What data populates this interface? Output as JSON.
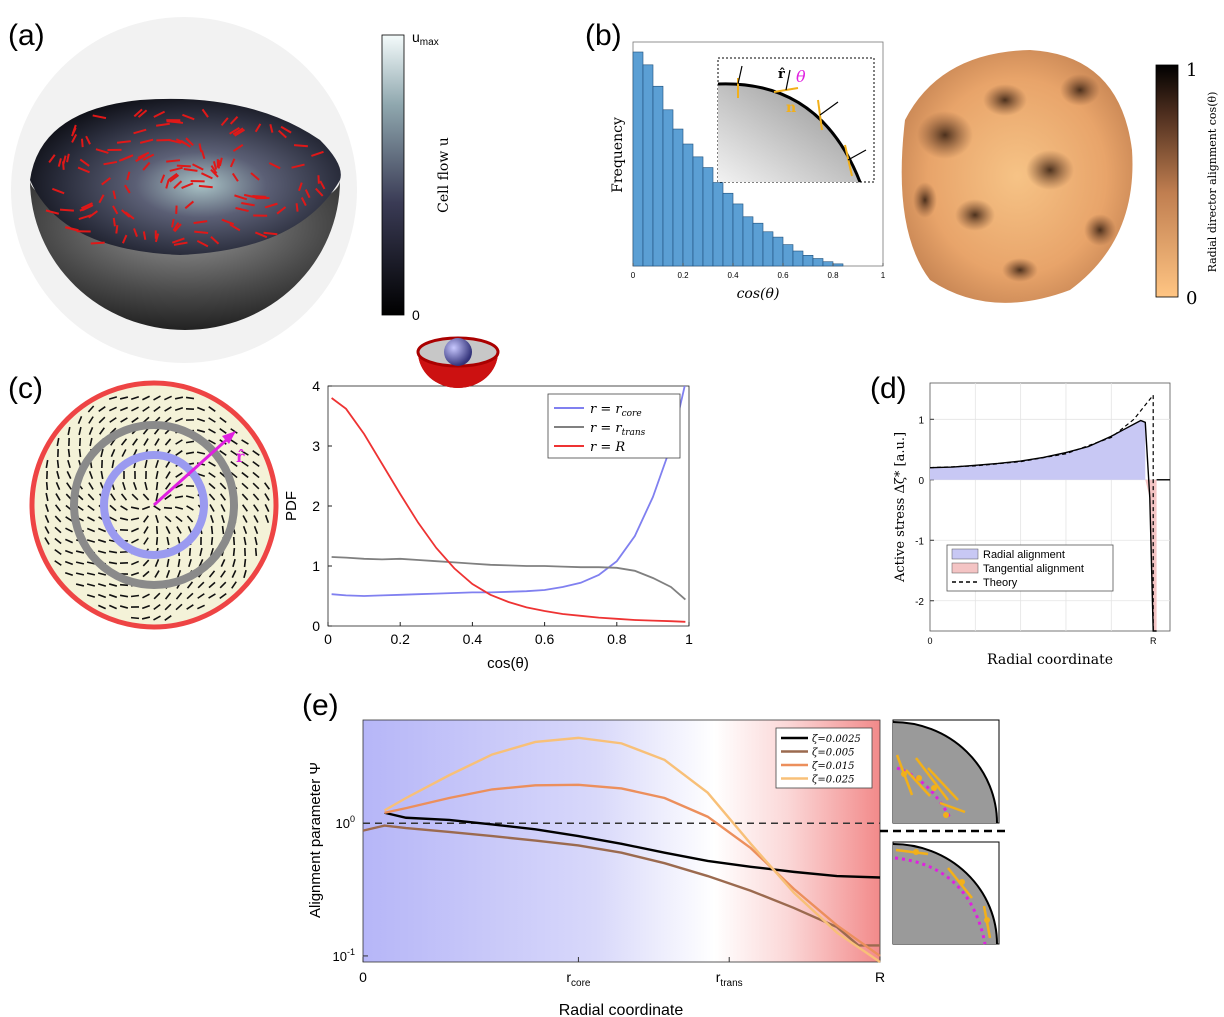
{
  "panels": {
    "a": {
      "letter": "(a)",
      "colorbar": {
        "label": "Cell flow u",
        "max": "u",
        "max_sub": "max",
        "min": "0"
      }
    },
    "b": {
      "letter": "(b)",
      "colorbar": {
        "label": "Radial director alignment cos(θ)",
        "max": "1",
        "min": "0"
      },
      "inset": {
        "r_hat": "r̂",
        "theta": "θ",
        "n": "n"
      }
    },
    "c": {
      "letter": "(c)",
      "r_hat": "r̂"
    },
    "d": {
      "letter": "(d)"
    },
    "e": {
      "letter": "(e)"
    }
  },
  "chart_data": [
    {
      "id": "b",
      "type": "bar",
      "xlabel": "cos(θ)",
      "ylabel": "Frequency",
      "xlim": [
        0,
        1
      ],
      "bin_width": 0.04,
      "x": [
        0.0,
        0.04,
        0.08,
        0.12,
        0.16,
        0.2,
        0.24,
        0.28,
        0.32,
        0.36,
        0.4,
        0.44,
        0.48,
        0.52,
        0.56,
        0.6,
        0.64,
        0.68,
        0.72,
        0.76,
        0.8
      ],
      "values": [
        1.0,
        0.94,
        0.84,
        0.73,
        0.64,
        0.57,
        0.51,
        0.46,
        0.39,
        0.34,
        0.29,
        0.23,
        0.2,
        0.16,
        0.135,
        0.1,
        0.07,
        0.05,
        0.035,
        0.02,
        0.01
      ],
      "xticks": [
        "0",
        "0.2",
        "0.4",
        "0.6",
        "0.8",
        "1"
      ],
      "color": "#5b9fd4"
    },
    {
      "id": "c",
      "type": "line",
      "xlabel": "cos(θ)",
      "ylabel": "PDF",
      "xlim": [
        0,
        1
      ],
      "ylim": [
        0,
        4
      ],
      "xticks": [
        "0",
        "0.2",
        "0.4",
        "0.6",
        "0.8",
        "1"
      ],
      "yticks": [
        "0",
        "1",
        "2",
        "3",
        "4"
      ],
      "legend_position": "top-right",
      "series": [
        {
          "name": "r = r_core",
          "label_main": "r = r",
          "label_sub": "core",
          "color": "#8080f0",
          "x": [
            0.01,
            0.05,
            0.1,
            0.15,
            0.2,
            0.25,
            0.3,
            0.35,
            0.4,
            0.45,
            0.5,
            0.55,
            0.6,
            0.65,
            0.7,
            0.75,
            0.8,
            0.85,
            0.9,
            0.95,
            0.99
          ],
          "y": [
            0.53,
            0.51,
            0.5,
            0.51,
            0.52,
            0.53,
            0.54,
            0.55,
            0.56,
            0.56,
            0.57,
            0.58,
            0.6,
            0.65,
            0.72,
            0.85,
            1.08,
            1.5,
            2.15,
            3.0,
            4.05
          ]
        },
        {
          "name": "r = r_trans",
          "label_main": "r = r",
          "label_sub": "trans",
          "color": "#808080",
          "x": [
            0.01,
            0.05,
            0.1,
            0.15,
            0.2,
            0.25,
            0.3,
            0.35,
            0.4,
            0.45,
            0.5,
            0.55,
            0.6,
            0.65,
            0.7,
            0.75,
            0.8,
            0.85,
            0.9,
            0.95,
            0.99
          ],
          "y": [
            1.15,
            1.14,
            1.12,
            1.11,
            1.12,
            1.1,
            1.08,
            1.06,
            1.04,
            1.02,
            1.01,
            1.0,
            1.0,
            0.99,
            0.98,
            0.98,
            0.97,
            0.92,
            0.8,
            0.65,
            0.44
          ]
        },
        {
          "name": "r = R",
          "label_main": "r = R",
          "label_sub": "",
          "color": "#ee3333",
          "x": [
            0.01,
            0.05,
            0.1,
            0.15,
            0.2,
            0.25,
            0.3,
            0.35,
            0.4,
            0.45,
            0.5,
            0.55,
            0.6,
            0.65,
            0.7,
            0.75,
            0.8,
            0.85,
            0.9,
            0.95,
            0.99
          ],
          "y": [
            3.8,
            3.62,
            3.2,
            2.7,
            2.2,
            1.72,
            1.3,
            0.96,
            0.7,
            0.52,
            0.4,
            0.31,
            0.25,
            0.2,
            0.17,
            0.14,
            0.12,
            0.1,
            0.09,
            0.08,
            0.07
          ]
        }
      ]
    },
    {
      "id": "d",
      "type": "area",
      "xlabel": "Radial coordinate",
      "ylabel": "Active stress Δζ* [a.u.]",
      "xticks": [
        "0",
        "R"
      ],
      "yticks": [
        "1",
        "0",
        "-1",
        "-2"
      ],
      "ylim": [
        -2.5,
        1.6
      ],
      "legend_position": "bottom-left",
      "series": [
        {
          "name": "Radial alignment",
          "color": "#c8c8f4",
          "x": [
            0.0,
            0.1,
            0.2,
            0.3,
            0.4,
            0.5,
            0.6,
            0.7,
            0.8,
            0.85,
            0.9,
            0.93,
            0.95
          ],
          "y": [
            0.2,
            0.21,
            0.24,
            0.27,
            0.31,
            0.37,
            0.45,
            0.55,
            0.72,
            0.82,
            0.92,
            0.98,
            0.95
          ]
        },
        {
          "name": "Tangential alignment",
          "color": "#f4c4c4",
          "x": [
            0.95,
            0.97,
            0.985,
            1.0
          ],
          "y": [
            0.0,
            -0.3,
            -2.5,
            -2.5
          ]
        },
        {
          "name": "Theory",
          "color": "#000000",
          "dash": true,
          "x": [
            0.0,
            0.2,
            0.4,
            0.6,
            0.8,
            0.9,
            0.985
          ],
          "y": [
            0.2,
            0.23,
            0.3,
            0.43,
            0.7,
            1.0,
            1.4
          ]
        }
      ]
    },
    {
      "id": "e",
      "type": "line",
      "xlabel": "Radial coordinate",
      "ylabel": "Alignment parameter Ψ",
      "yscale": "log",
      "ylim": [
        0.09,
        6
      ],
      "xticks": [
        "0",
        "r_core",
        "r_trans",
        "R"
      ],
      "xtick_main": [
        "0",
        "r",
        "r",
        "R"
      ],
      "xtick_sub": [
        "",
        "core",
        "trans",
        ""
      ],
      "xtick_pos": [
        0,
        0.5,
        0.85,
        1.2
      ],
      "yticks": [
        "10^-1",
        "10^0"
      ],
      "legend_position": "top-right",
      "series": [
        {
          "name": "ζ=0.0025",
          "color": "#000000",
          "x": [
            0.05,
            0.1,
            0.2,
            0.3,
            0.4,
            0.5,
            0.6,
            0.7,
            0.8,
            0.9,
            1.0,
            1.1,
            1.2
          ],
          "y": [
            1.2,
            1.1,
            1.06,
            0.98,
            0.9,
            0.8,
            0.7,
            0.6,
            0.52,
            0.47,
            0.43,
            0.4,
            0.39
          ]
        },
        {
          "name": "ζ=0.005",
          "color": "#9b6a4f",
          "x": [
            0.0,
            0.05,
            0.1,
            0.2,
            0.3,
            0.4,
            0.5,
            0.6,
            0.7,
            0.8,
            0.9,
            1.0,
            1.1,
            1.15,
            1.2
          ],
          "y": [
            0.88,
            0.96,
            0.92,
            0.86,
            0.8,
            0.74,
            0.68,
            0.6,
            0.5,
            0.4,
            0.31,
            0.23,
            0.165,
            0.12,
            0.12
          ]
        },
        {
          "name": "ζ=0.015",
          "color": "#ec8f5c",
          "x": [
            0.05,
            0.1,
            0.2,
            0.3,
            0.4,
            0.5,
            0.6,
            0.7,
            0.8,
            0.9,
            1.0,
            1.1,
            1.2
          ],
          "y": [
            1.2,
            1.3,
            1.55,
            1.8,
            1.93,
            1.95,
            1.83,
            1.55,
            1.12,
            0.65,
            0.32,
            0.17,
            0.1
          ]
        },
        {
          "name": "ζ=0.025",
          "color": "#f8c078",
          "x": [
            0.05,
            0.1,
            0.2,
            0.3,
            0.4,
            0.5,
            0.6,
            0.7,
            0.8,
            0.9,
            1.0,
            1.1,
            1.2
          ],
          "y": [
            1.25,
            1.55,
            2.3,
            3.3,
            4.1,
            4.4,
            4.0,
            3.0,
            1.7,
            0.7,
            0.3,
            0.15,
            0.09
          ]
        }
      ]
    }
  ]
}
